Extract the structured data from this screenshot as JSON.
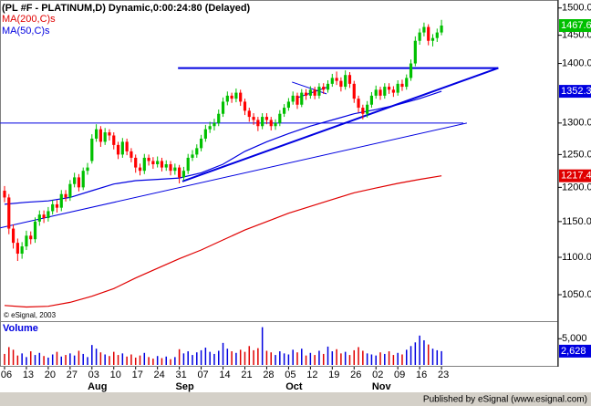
{
  "chart_data": {
    "type": "candlestick",
    "title": "(PL #F - PLATINUM,D) Dynamic,0:00:24:80 (Delayed)",
    "credit": "© eSignal, 2003",
    "footer": "Published by eSignal (www.esignal.com)",
    "log_scale": true,
    "up_color": "#00c000",
    "down_color": "#ff0000",
    "open": [
      1195,
      1185,
      1140,
      1120,
      1105,
      1115,
      1130,
      1125,
      1150,
      1160,
      1155,
      1165,
      1175,
      1170,
      1190,
      1185,
      1205,
      1215,
      1200,
      1225,
      1240,
      1275,
      1290,
      1270,
      1285,
      1280,
      1265,
      1250,
      1270,
      1255,
      1245,
      1230,
      1225,
      1245,
      1240,
      1235,
      1240,
      1230,
      1235,
      1225,
      1230,
      1215,
      1225,
      1245,
      1250,
      1260,
      1275,
      1290,
      1295,
      1300,
      1315,
      1335,
      1345,
      1340,
      1350,
      1335,
      1320,
      1310,
      1305,
      1295,
      1310,
      1305,
      1295,
      1300,
      1315,
      1325,
      1335,
      1345,
      1330,
      1350,
      1345,
      1355,
      1345,
      1360,
      1355,
      1365,
      1375,
      1370,
      1360,
      1380,
      1365,
      1340,
      1325,
      1315,
      1330,
      1345,
      1355,
      1345,
      1360,
      1355,
      1350,
      1365,
      1360,
      1375,
      1400,
      1440,
      1455,
      1465,
      1440,
      1445,
      1455
    ],
    "high": [
      1202,
      1190,
      1146,
      1126,
      1121,
      1137,
      1136,
      1156,
      1166,
      1166,
      1171,
      1181,
      1181,
      1196,
      1196,
      1211,
      1222,
      1220,
      1230,
      1237,
      1282,
      1298,
      1295,
      1292,
      1290,
      1285,
      1270,
      1276,
      1275,
      1260,
      1250,
      1236,
      1251,
      1250,
      1246,
      1247,
      1245,
      1241,
      1240,
      1236,
      1234,
      1231,
      1251,
      1257,
      1266,
      1281,
      1297,
      1302,
      1307,
      1322,
      1342,
      1352,
      1350,
      1357,
      1355,
      1340,
      1325,
      1316,
      1310,
      1316,
      1316,
      1310,
      1306,
      1321,
      1331,
      1341,
      1352,
      1350,
      1356,
      1356,
      1361,
      1360,
      1366,
      1366,
      1371,
      1382,
      1386,
      1376,
      1388,
      1385,
      1370,
      1345,
      1330,
      1336,
      1351,
      1362,
      1360,
      1366,
      1366,
      1361,
      1371,
      1372,
      1381,
      1407,
      1448,
      1462,
      1473,
      1470,
      1452,
      1462,
      1478
    ],
    "low": [
      1178,
      1132,
      1112,
      1095,
      1098,
      1110,
      1118,
      1120,
      1144,
      1148,
      1150,
      1160,
      1163,
      1165,
      1179,
      1180,
      1200,
      1194,
      1196,
      1219,
      1236,
      1270,
      1262,
      1265,
      1272,
      1258,
      1243,
      1245,
      1249,
      1238,
      1222,
      1218,
      1220,
      1233,
      1228,
      1230,
      1224,
      1225,
      1218,
      1219,
      1206,
      1210,
      1220,
      1240,
      1245,
      1255,
      1270,
      1284,
      1288,
      1295,
      1310,
      1329,
      1333,
      1334,
      1328,
      1313,
      1302,
      1297,
      1287,
      1290,
      1298,
      1288,
      1289,
      1295,
      1310,
      1320,
      1330,
      1323,
      1326,
      1338,
      1340,
      1339,
      1340,
      1348,
      1350,
      1360,
      1363,
      1352,
      1355,
      1358,
      1333,
      1317,
      1306,
      1309,
      1325,
      1340,
      1338,
      1340,
      1348,
      1343,
      1345,
      1353,
      1355,
      1370,
      1395,
      1433,
      1448,
      1432,
      1430,
      1438,
      1450
    ],
    "close": [
      1185,
      1140,
      1120,
      1105,
      1115,
      1130,
      1125,
      1150,
      1160,
      1155,
      1165,
      1175,
      1170,
      1190,
      1185,
      1205,
      1215,
      1200,
      1225,
      1230,
      1275,
      1290,
      1270,
      1285,
      1280,
      1265,
      1250,
      1270,
      1255,
      1245,
      1230,
      1225,
      1245,
      1240,
      1235,
      1240,
      1230,
      1235,
      1225,
      1230,
      1215,
      1225,
      1245,
      1250,
      1260,
      1275,
      1290,
      1295,
      1300,
      1315,
      1335,
      1345,
      1340,
      1350,
      1335,
      1320,
      1310,
      1305,
      1295,
      1310,
      1305,
      1295,
      1300,
      1315,
      1325,
      1335,
      1345,
      1330,
      1350,
      1345,
      1355,
      1345,
      1360,
      1355,
      1365,
      1375,
      1370,
      1360,
      1380,
      1365,
      1340,
      1325,
      1315,
      1330,
      1345,
      1355,
      1345,
      1360,
      1355,
      1350,
      1365,
      1360,
      1375,
      1400,
      1440,
      1455,
      1465,
      1440,
      1445,
      1455,
      1467.6
    ],
    "series": [
      {
        "name": "MA(200,C)s",
        "color": "#e00000",
        "x": [
          0,
          5,
          10,
          15,
          20,
          25,
          30,
          35,
          40,
          45,
          50,
          55,
          60,
          65,
          70,
          75,
          80,
          85,
          90,
          95,
          100
        ],
        "values": [
          1036,
          1034,
          1035,
          1040,
          1048,
          1058,
          1072,
          1085,
          1098,
          1110,
          1124,
          1138,
          1150,
          1162,
          1172,
          1182,
          1192,
          1199,
          1206,
          1212,
          1217.4
        ]
      },
      {
        "name": "MA(50,C)s",
        "color": "#0000e0",
        "x": [
          0,
          5,
          10,
          15,
          20,
          25,
          30,
          35,
          40,
          45,
          50,
          55,
          60,
          65,
          70,
          75,
          80,
          85,
          90,
          95,
          100
        ],
        "values": [
          1175,
          1178,
          1180,
          1185,
          1195,
          1205,
          1210,
          1212,
          1214,
          1222,
          1235,
          1255,
          1270,
          1283,
          1295,
          1305,
          1315,
          1322,
          1330,
          1340,
          1352.3
        ]
      }
    ],
    "lines": [
      {
        "color": "#0000e0",
        "width": 2,
        "x": [
          39.7,
          113
        ],
        "y": [
          1392,
          1392
        ]
      },
      {
        "color": "#0000e0",
        "width": 2,
        "x": [
          40.7,
          113
        ],
        "y": [
          1209,
          1392
        ]
      },
      {
        "color": "#0000e0",
        "width": 1,
        "x": [
          -1,
          105
        ],
        "y": [
          1300,
          1300
        ]
      },
      {
        "color": "#0000e0",
        "width": 1,
        "x": [
          -1,
          105.8
        ],
        "y": [
          1141,
          1300
        ]
      },
      {
        "color": "#0000e0",
        "width": 1,
        "x": [
          65.8,
          73.7
        ],
        "y": [
          1368,
          1348
        ]
      },
      {
        "color": "#0000e0",
        "width": 1,
        "x": [
          66.8,
          73.7
        ],
        "y": [
          1341,
          1359
        ]
      }
    ],
    "xlim": [
      -1.04,
      126.7
    ],
    "ylim": [
      1016,
      1515
    ],
    "yticks": [
      {
        "value": 1500,
        "label": "1500.0"
      },
      {
        "value": 1450,
        "label": "1450.0"
      },
      {
        "value": 1400,
        "label": "1400.0"
      },
      {
        "value": 1300,
        "label": "1300.0"
      },
      {
        "value": 1250,
        "label": "1250.0"
      },
      {
        "value": 1200,
        "label": "1200.0"
      },
      {
        "value": 1150,
        "label": "1150.0"
      },
      {
        "value": 1100,
        "label": "1100.0"
      },
      {
        "value": 1050,
        "label": "1050.0"
      }
    ],
    "xticks": [
      {
        "value": 0,
        "label": "06"
      },
      {
        "value": 5,
        "label": "13"
      },
      {
        "value": 10,
        "label": "20"
      },
      {
        "value": 15,
        "label": "27"
      },
      {
        "value": 20,
        "label": "03"
      },
      {
        "value": 25,
        "label": "10"
      },
      {
        "value": 30,
        "label": "17"
      },
      {
        "value": 35,
        "label": "24"
      },
      {
        "value": 40,
        "label": "31"
      },
      {
        "value": 45,
        "label": "07"
      },
      {
        "value": 50,
        "label": "14"
      },
      {
        "value": 55,
        "label": "21"
      },
      {
        "value": 60,
        "label": "28"
      },
      {
        "value": 65,
        "label": "05"
      },
      {
        "value": 70,
        "label": "12"
      },
      {
        "value": 75,
        "label": "19"
      },
      {
        "value": 80,
        "label": "26"
      },
      {
        "value": 85,
        "label": "02"
      },
      {
        "value": 90,
        "label": "09"
      },
      {
        "value": 95,
        "label": "16"
      },
      {
        "value": 100,
        "label": "23"
      }
    ],
    "months": [
      {
        "value": 20,
        "label": "Aug"
      },
      {
        "value": 40,
        "label": "Sep"
      },
      {
        "value": 65,
        "label": "Oct"
      },
      {
        "value": 85,
        "label": "Nov"
      }
    ],
    "volume": {
      "title": "Volume",
      "color_up": "#0000e0",
      "color_down": "#e00000",
      "values": [
        2100,
        3400,
        2900,
        1800,
        2200,
        1500,
        2600,
        1900,
        2300,
        1700,
        1400,
        2000,
        2500,
        1600,
        1900,
        2200,
        1800,
        2700,
        2100,
        1500,
        3800,
        3100,
        2400,
        2000,
        1700,
        2500,
        1900,
        2200,
        1600,
        2000,
        1400,
        1800,
        2300,
        1500,
        1200,
        1700,
        1300,
        1600,
        1100,
        1500,
        3000,
        2200,
        2600,
        1900,
        2400,
        2800,
        3300,
        2500,
        2100,
        2700,
        4200,
        3100,
        2600,
        2300,
        2900,
        2500,
        3600,
        2800,
        3200,
        7200,
        2700,
        2400,
        1900,
        2600,
        2200,
        2000,
        2900,
        2400,
        3100,
        1800,
        2300,
        1900,
        2700,
        2100,
        3500,
        2600,
        3000,
        2200,
        2500,
        1900,
        2800,
        3400,
        2700,
        2200,
        2000,
        1800,
        2400,
        2100,
        2600,
        1900,
        2300,
        2000,
        2900,
        3600,
        4300,
        5600,
        4700,
        3900,
        3100,
        2800,
        2628
      ],
      "last_label": "2,628",
      "ylim": [
        0,
        8000
      ],
      "yticks": [
        {
          "value": 5000,
          "label": "5,000"
        }
      ]
    }
  }
}
